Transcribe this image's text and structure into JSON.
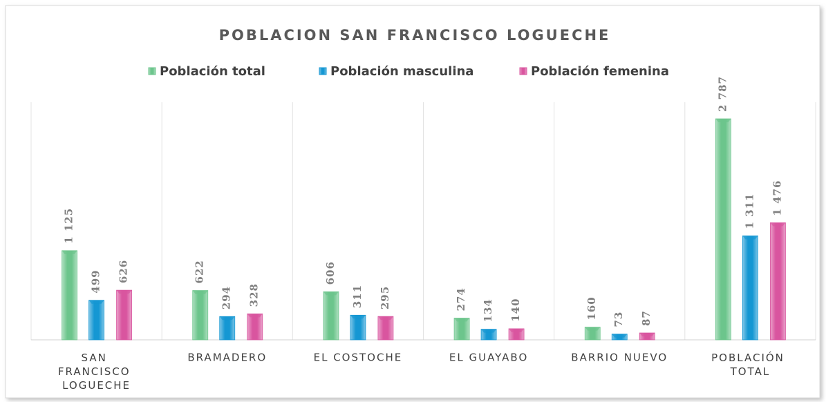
{
  "chart_data": {
    "type": "bar",
    "title": "POBLACION SAN FRANCISCO LOGUECHE",
    "categories": [
      "SAN FRANCISCO LOGUECHE",
      "BRAMADERO",
      "EL COSTOCHE",
      "EL GUAYABO",
      "BARRIO NUEVO",
      "POBLACIÓN TOTAL"
    ],
    "series": [
      {
        "name": "Población total",
        "color": "#6cc58c",
        "values": [
          1125,
          622,
          606,
          274,
          160,
          2787
        ],
        "value_labels": [
          "1 125",
          "622",
          "606",
          "274",
          "160",
          "2 787"
        ]
      },
      {
        "name": "Población masculina",
        "color": "#1597d3",
        "values": [
          499,
          294,
          311,
          134,
          73,
          1311
        ],
        "value_labels": [
          "499",
          "294",
          "311",
          "134",
          "73",
          "1 311"
        ]
      },
      {
        "name": "Población femenina",
        "color": "#d9559f",
        "values": [
          626,
          328,
          295,
          140,
          87,
          1476
        ],
        "value_labels": [
          "626",
          "328",
          "295",
          "140",
          "87",
          "1 476"
        ]
      }
    ],
    "grid": true
  }
}
